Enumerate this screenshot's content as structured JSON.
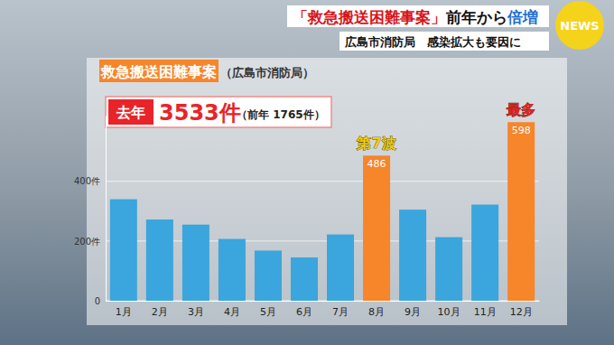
{
  "banner": {
    "headline": [
      "「救急搬送困難事案」",
      "前年から",
      "倍増"
    ],
    "subtitle": "広島市消防局　感染拡大も要因に",
    "logo": "NEWS"
  },
  "summary": {
    "label": "去年",
    "total": "3533件",
    "previous": "（前年 1765件）"
  },
  "chart_data": {
    "type": "bar",
    "title": "救急搬送困難事案",
    "subtitle": "（広島市消防局）",
    "categories": [
      "1月",
      "2月",
      "3月",
      "4月",
      "5月",
      "6月",
      "7月",
      "8月",
      "9月",
      "10月",
      "11月",
      "12月"
    ],
    "values": [
      340,
      272,
      255,
      207,
      168,
      145,
      222,
      486,
      305,
      213,
      322,
      598
    ],
    "value_labels": [
      null,
      null,
      null,
      null,
      null,
      null,
      null,
      "486",
      null,
      null,
      null,
      "598"
    ],
    "colors": [
      "#3aa6dd",
      "#3aa6dd",
      "#3aa6dd",
      "#3aa6dd",
      "#3aa6dd",
      "#3aa6dd",
      "#3aa6dd",
      "#f7852a",
      "#3aa6dd",
      "#3aa6dd",
      "#3aa6dd",
      "#f7852a"
    ],
    "ylim": [
      0,
      620
    ],
    "yticks": [
      0,
      {
        "value": 200,
        "label": "200件"
      },
      {
        "value": 400,
        "label": "400件"
      }
    ],
    "grid": true,
    "annotations": [
      {
        "text": "第7波",
        "category": "8月",
        "color": "#f2cf00"
      },
      {
        "text": "最多",
        "category": "12月",
        "color": "#e8242a"
      }
    ]
  }
}
